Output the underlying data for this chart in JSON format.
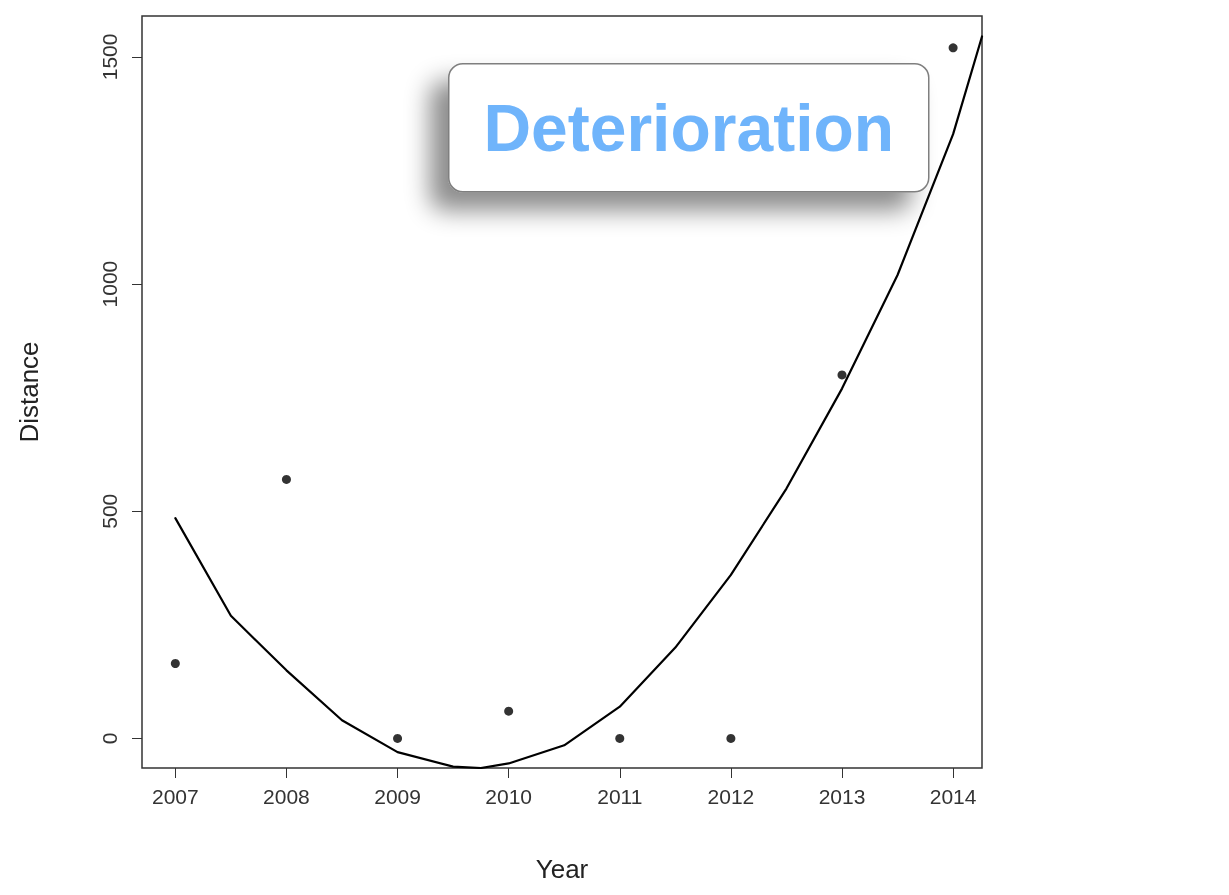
{
  "chart_data": {
    "type": "scatter",
    "xlabel": "Year",
    "ylabel": "Distance",
    "xlim": [
      2006.7,
      2014.26
    ],
    "xticks": [
      2007,
      2008,
      2009,
      2010,
      2011,
      2012,
      2013,
      2014
    ],
    "ylim": [
      -65,
      1590
    ],
    "yticks": [
      0,
      500,
      1000,
      1500
    ],
    "grid": false,
    "marker": "circle",
    "series": [
      {
        "color": "#000000",
        "x": [
          2007,
          2008,
          2009,
          2010,
          2011,
          2012,
          2013,
          2014
        ],
        "values": [
          165,
          570,
          0,
          60,
          0,
          0,
          800,
          1520
        ]
      },
      {
        "type": "line",
        "color": "#000000",
        "line_style": "solid",
        "marker": "none",
        "x": [
          2007,
          2007.5,
          2008,
          2008.5,
          2009,
          2009.5,
          2009.75,
          2010,
          2010.5,
          2011,
          2011.5,
          2012,
          2012.5,
          2013,
          2013.5,
          2014,
          2014.26
        ],
        "values": [
          485,
          270,
          150,
          40,
          -30,
          -62,
          -65,
          -55,
          -15,
          70,
          200,
          360,
          550,
          770,
          1020,
          1330,
          1545
        ]
      }
    ],
    "annotations": [
      "Deterioration"
    ]
  }
}
